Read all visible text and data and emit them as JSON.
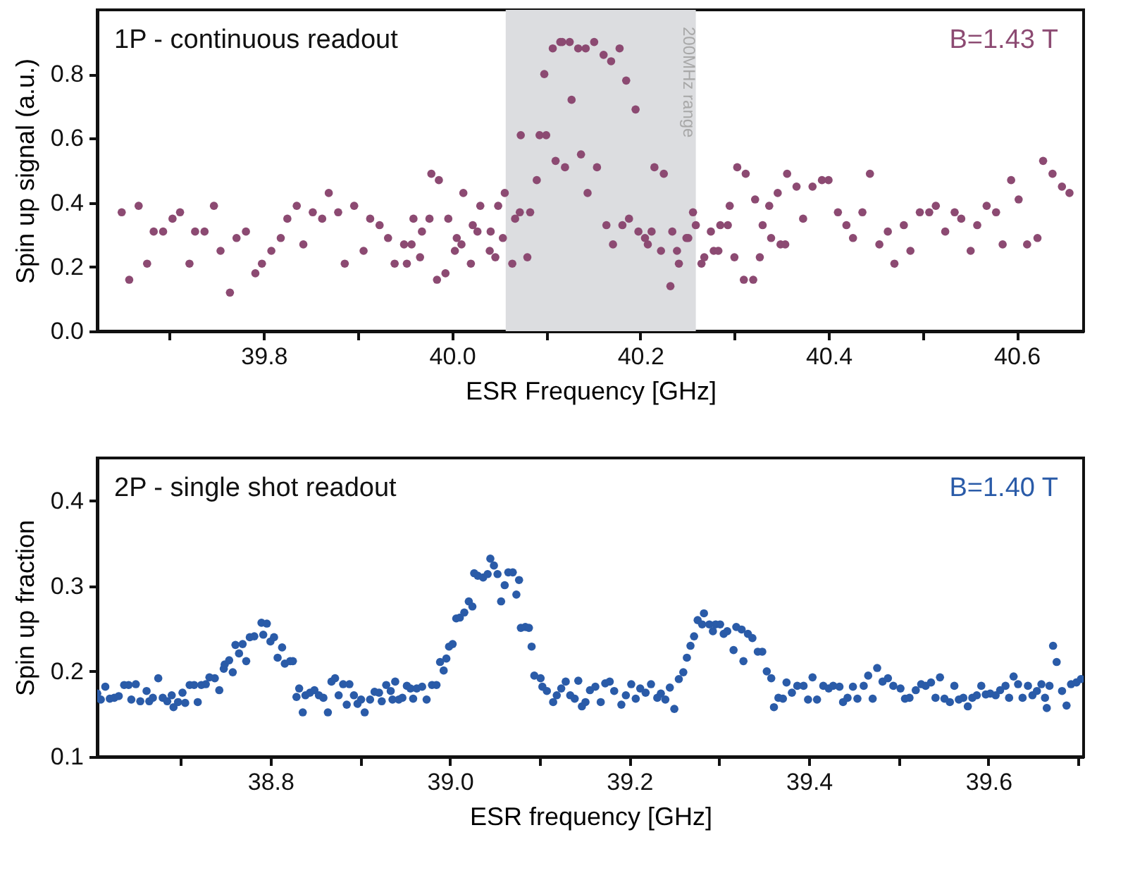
{
  "chart_data": [
    {
      "type": "scatter",
      "xlabel": "ESR Frequency [GHz]",
      "ylabel": "Spin up signal (a.u.)",
      "annotations": [
        "1P - continuous readout"
      ],
      "marker": "circle",
      "xlim": [
        39.623,
        40.671
      ],
      "xticks": [
        {
          "value": 39.7,
          "label": null
        },
        39.8,
        {
          "value": 39.9,
          "label": null
        },
        {
          "value": 40,
          "label": "40.0"
        },
        {
          "value": 40.1,
          "label": null
        },
        40.2,
        {
          "value": 40.3,
          "label": null
        },
        40.4,
        {
          "value": 40.5,
          "label": null
        },
        40.6
      ],
      "ylim": [
        0,
        1.0
      ],
      "yticks": [
        {
          "value": 0,
          "label": "0.0"
        },
        0.2,
        0.4,
        0.6,
        0.8
      ],
      "bands": [
        {
          "axis": "x",
          "from": 40.057,
          "to": 40.259,
          "label": "200MHz range",
          "color": "#dcdde0"
        }
      ],
      "series": [
        {
          "name": "B=1.43 T",
          "color": "#8c4a72",
          "x": [
            39.649,
            39.657,
            39.667,
            39.676,
            39.683,
            39.693,
            39.703,
            39.711,
            39.721,
            39.727,
            39.737,
            39.747,
            39.754,
            39.764,
            39.771,
            39.781,
            39.791,
            39.798,
            39.808,
            39.818,
            39.825,
            39.835,
            39.842,
            39.852,
            39.862,
            39.869,
            39.879,
            39.886,
            39.896,
            39.906,
            39.913,
            39.923,
            39.932,
            39.939,
            39.949,
            39.952,
            39.957,
            39.959,
            39.966,
            39.968,
            39.976,
            39.978,
            39.986,
            39.984,
            39.993,
            39.996,
            40.003,
            40.005,
            40.01,
            40.012,
            40.02,
            40.022,
            40.027,
            40.03,
            40.04,
            40.041,
            40.046,
            40.049,
            40.054,
            40.056,
            40.064,
            40.067,
            40.073,
            40.072,
            40.08,
            40.083,
            40.09,
            40.093,
            40.1,
            40.098,
            40.107,
            40.11,
            40.115,
            40.12,
            40.117,
            40.125,
            40.127,
            40.134,
            40.137,
            40.142,
            40.144,
            40.151,
            40.154,
            40.161,
            40.164,
            40.169,
            40.171,
            40.178,
            40.181,
            40.185,
            40.188,
            40.195,
            40.198,
            40.205,
            40.208,
            40.212,
            40.215,
            40.222,
            40.225,
            40.234,
            40.239,
            40.241,
            40.232,
            40.249,
            40.251,
            40.256,
            40.259,
            40.265,
            40.268,
            40.275,
            40.278,
            40.283,
            40.285,
            40.293,
            40.295,
            40.3,
            40.303,
            40.31,
            40.312,
            40.32,
            40.322,
            40.327,
            40.33,
            40.337,
            40.339,
            40.346,
            40.349,
            40.354,
            40.356,
            40.366,
            40.373,
            40.383,
            40.393,
            40.4,
            40.41,
            40.419,
            40.426,
            40.436,
            40.444,
            40.454,
            40.463,
            40.47,
            40.48,
            40.487,
            40.497,
            40.507,
            40.514,
            40.524,
            40.534,
            40.541,
            40.551,
            40.558,
            40.568,
            40.578,
            40.585,
            40.594,
            40.602,
            40.611,
            40.622,
            40.628,
            40.638,
            40.648,
            40.656
          ],
          "values": [
            0.37,
            0.16,
            0.39,
            0.21,
            0.31,
            0.31,
            0.35,
            0.37,
            0.21,
            0.31,
            0.31,
            0.39,
            0.25,
            0.12,
            0.29,
            0.31,
            0.18,
            0.21,
            0.25,
            0.29,
            0.35,
            0.39,
            0.27,
            0.37,
            0.35,
            0.43,
            0.37,
            0.21,
            0.39,
            0.25,
            0.35,
            0.33,
            0.29,
            0.21,
            0.27,
            0.21,
            0.27,
            0.35,
            0.23,
            0.31,
            0.35,
            0.49,
            0.47,
            0.16,
            0.18,
            0.35,
            0.25,
            0.29,
            0.27,
            0.43,
            0.21,
            0.33,
            0.31,
            0.39,
            0.25,
            0.31,
            0.23,
            0.39,
            0.29,
            0.43,
            0.21,
            0.35,
            0.61,
            0.37,
            0.23,
            0.37,
            0.47,
            0.61,
            0.61,
            0.8,
            0.88,
            0.53,
            0.9,
            0.51,
            0.9,
            0.9,
            0.72,
            0.88,
            0.55,
            0.88,
            0.43,
            0.9,
            0.51,
            0.86,
            0.33,
            0.84,
            0.27,
            0.88,
            0.33,
            0.78,
            0.35,
            0.69,
            0.31,
            0.29,
            0.27,
            0.31,
            0.51,
            0.25,
            0.49,
            0.31,
            0.25,
            0.21,
            0.14,
            0.29,
            0.29,
            0.37,
            0.33,
            0.21,
            0.23,
            0.31,
            0.25,
            0.25,
            0.33,
            0.33,
            0.39,
            0.23,
            0.51,
            0.16,
            0.49,
            0.16,
            0.41,
            0.23,
            0.33,
            0.39,
            0.29,
            0.43,
            0.27,
            0.27,
            0.49,
            0.45,
            0.35,
            0.45,
            0.47,
            0.47,
            0.37,
            0.33,
            0.29,
            0.37,
            0.49,
            0.27,
            0.31,
            0.21,
            0.33,
            0.25,
            0.37,
            0.37,
            0.39,
            0.31,
            0.37,
            0.35,
            0.25,
            0.33,
            0.39,
            0.37,
            0.27,
            0.47,
            0.41,
            0.27,
            0.29,
            0.53,
            0.49,
            0.45,
            0.43
          ]
        }
      ]
    },
    {
      "type": "scatter",
      "xlabel": "ESR frequency [GHz]",
      "ylabel": "Spin up fraction",
      "annotations": [
        "2P - single shot readout"
      ],
      "marker": "circle",
      "xlim": [
        38.607,
        39.706
      ],
      "xticks": [
        {
          "value": 38.7,
          "label": null
        },
        38.8,
        {
          "value": 38.9,
          "label": null
        },
        {
          "value": 39,
          "label": "39.0"
        },
        {
          "value": 39.1,
          "label": null
        },
        39.2,
        {
          "value": 39.3,
          "label": null
        },
        39.4,
        {
          "value": 39.5,
          "label": null
        },
        39.6,
        {
          "value": 39.7,
          "label": null
        }
      ],
      "ylim": [
        0.1,
        0.45
      ],
      "yticks": [
        0.1,
        0.2,
        0.3,
        0.4
      ],
      "series": [
        {
          "name": "B=1.40 T",
          "color": "#2a5ba8",
          "x": [
            38.607,
            38.611,
            38.616,
            38.621,
            38.626,
            38.631,
            38.637,
            38.642,
            38.645,
            38.65,
            38.655,
            38.662,
            38.665,
            38.669,
            38.675,
            38.68,
            38.685,
            38.69,
            38.692,
            38.697,
            38.702,
            38.705,
            38.71,
            38.715,
            38.719,
            38.723,
            38.728,
            38.732,
            38.738,
            38.743,
            38.748,
            38.749,
            38.754,
            38.758,
            38.761,
            38.765,
            38.769,
            38.773,
            38.777,
            38.782,
            38.79,
            38.792,
            38.796,
            38.8,
            38.804,
            38.808,
            38.813,
            38.816,
            38.822,
            38.825,
            38.829,
            38.832,
            38.836,
            38.839,
            38.844,
            38.849,
            38.854,
            38.859,
            38.864,
            38.868,
            38.872,
            38.876,
            38.881,
            38.885,
            38.888,
            38.893,
            38.897,
            38.901,
            38.905,
            38.911,
            38.916,
            38.921,
            38.924,
            38.929,
            38.934,
            38.936,
            38.939,
            38.943,
            38.947,
            38.952,
            38.956,
            38.959,
            38.963,
            38.969,
            38.974,
            38.98,
            38.985,
            38.989,
            38.993,
            38.996,
            38.999,
            39.003,
            39.007,
            39.011,
            39.016,
            39.021,
            39.025,
            39.027,
            39.031,
            39.037,
            39.042,
            39.045,
            39.049,
            39.053,
            39.057,
            39.061,
            39.065,
            39.07,
            39.074,
            39.077,
            39.079,
            39.084,
            39.088,
            39.091,
            39.094,
            39.101,
            39.103,
            39.108,
            39.115,
            39.119,
            39.124,
            39.129,
            39.134,
            39.139,
            39.143,
            39.147,
            39.151,
            39.156,
            39.162,
            39.168,
            39.173,
            39.178,
            39.183,
            39.191,
            39.196,
            39.202,
            39.207,
            39.212,
            39.218,
            39.224,
            39.231,
            39.235,
            39.24,
            39.245,
            39.25,
            39.255,
            39.26,
            39.264,
            39.268,
            39.272,
            39.276,
            39.281,
            39.283,
            39.289,
            39.293,
            39.296,
            39.301,
            39.305,
            39.309,
            39.316,
            39.319,
            39.325,
            39.327,
            39.332,
            39.337,
            39.343,
            39.348,
            39.353,
            39.358,
            39.361,
            39.366,
            39.371,
            39.375,
            39.381,
            39.387,
            39.394,
            39.399,
            39.404,
            39.409,
            39.416,
            39.422,
            39.427,
            39.434,
            39.438,
            39.443,
            39.449,
            39.454,
            39.461,
            39.466,
            39.471,
            39.476,
            39.482,
            39.488,
            39.494,
            39.502,
            39.507,
            39.512,
            39.519,
            39.525,
            39.53,
            39.536,
            39.541,
            39.546,
            39.551,
            39.557,
            39.562,
            39.567,
            39.572,
            39.577,
            39.582,
            39.587,
            39.592,
            39.597,
            39.602,
            39.608,
            39.613,
            39.619,
            39.623,
            39.628,
            39.633,
            39.638,
            39.644,
            39.649,
            39.654,
            39.659,
            39.663,
            39.665,
            39.668,
            39.672,
            39.676,
            39.682,
            39.687,
            39.692,
            39.698,
            39.703
          ],
          "values": [
            0.174,
            0.167,
            0.182,
            0.168,
            0.169,
            0.171,
            0.184,
            0.184,
            0.167,
            0.185,
            0.165,
            0.177,
            0.165,
            0.169,
            0.192,
            0.169,
            0.165,
            0.172,
            0.158,
            0.164,
            0.175,
            0.163,
            0.184,
            0.184,
            0.164,
            0.184,
            0.185,
            0.193,
            0.192,
            0.178,
            0.203,
            0.208,
            0.213,
            0.199,
            0.231,
            0.221,
            0.232,
            0.212,
            0.24,
            0.241,
            0.257,
            0.243,
            0.256,
            0.235,
            0.24,
            0.216,
            0.228,
            0.209,
            0.212,
            0.212,
            0.17,
            0.18,
            0.152,
            0.172,
            0.175,
            0.178,
            0.172,
            0.169,
            0.152,
            0.188,
            0.192,
            0.172,
            0.185,
            0.161,
            0.185,
            0.172,
            0.162,
            0.167,
            0.152,
            0.167,
            0.176,
            0.175,
            0.165,
            0.184,
            0.177,
            0.167,
            0.188,
            0.167,
            0.169,
            0.183,
            0.18,
            0.168,
            0.18,
            0.182,
            0.167,
            0.184,
            0.184,
            0.211,
            0.201,
            0.215,
            0.229,
            0.232,
            0.262,
            0.263,
            0.269,
            0.282,
            0.276,
            0.315,
            0.312,
            0.31,
            0.314,
            0.332,
            0.324,
            0.314,
            0.282,
            0.301,
            0.316,
            0.316,
            0.29,
            0.307,
            0.251,
            0.252,
            0.251,
            0.229,
            0.195,
            0.192,
            0.182,
            0.177,
            0.164,
            0.172,
            0.18,
            0.188,
            0.172,
            0.168,
            0.189,
            0.159,
            0.164,
            0.178,
            0.182,
            0.164,
            0.186,
            0.188,
            0.177,
            0.161,
            0.172,
            0.185,
            0.168,
            0.18,
            0.175,
            0.185,
            0.169,
            0.174,
            0.167,
            0.181,
            0.156,
            0.191,
            0.199,
            0.216,
            0.23,
            0.241,
            0.26,
            0.255,
            0.268,
            0.255,
            0.247,
            0.255,
            0.255,
            0.244,
            0.247,
            0.225,
            0.252,
            0.249,
            0.212,
            0.244,
            0.239,
            0.223,
            0.223,
            0.2,
            0.192,
            0.158,
            0.169,
            0.168,
            0.187,
            0.175,
            0.183,
            0.183,
            0.167,
            0.193,
            0.167,
            0.183,
            0.18,
            0.183,
            0.182,
            0.164,
            0.169,
            0.182,
            0.168,
            0.183,
            0.195,
            0.168,
            0.204,
            0.188,
            0.192,
            0.183,
            0.18,
            0.168,
            0.169,
            0.178,
            0.185,
            0.183,
            0.187,
            0.169,
            0.193,
            0.168,
            0.164,
            0.183,
            0.167,
            0.169,
            0.159,
            0.169,
            0.172,
            0.183,
            0.173,
            0.174,
            0.172,
            0.178,
            0.183,
            0.169,
            0.194,
            0.185,
            0.169,
            0.183,
            0.172,
            0.177,
            0.185,
            0.169,
            0.157,
            0.183,
            0.23,
            0.211,
            0.177,
            0.16,
            0.185,
            0.187,
            0.191
          ]
        }
      ]
    }
  ]
}
